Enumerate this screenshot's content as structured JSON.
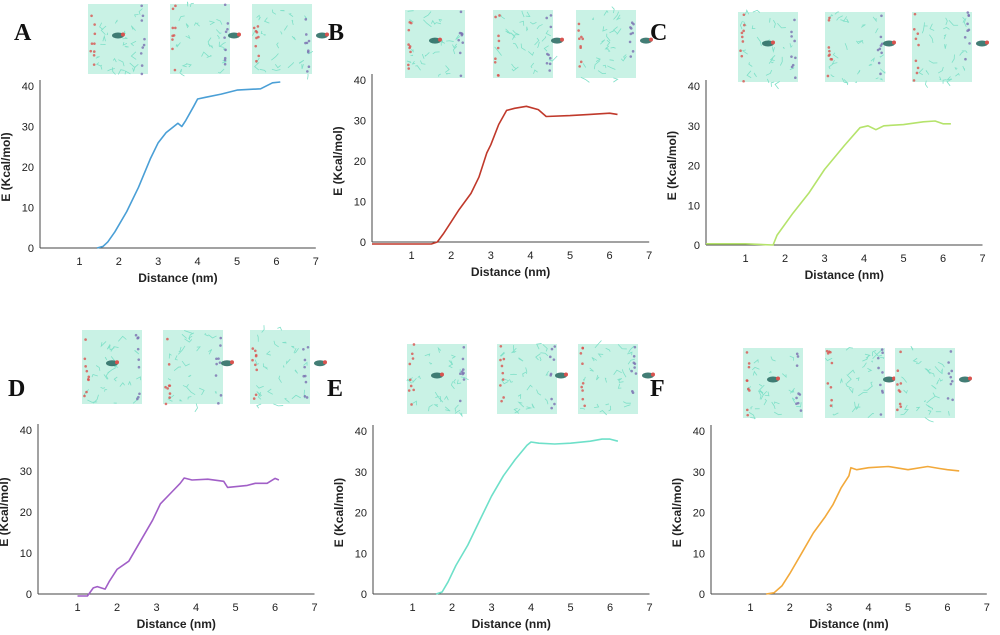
{
  "chart_data": [
    {
      "panel": "A",
      "type": "line",
      "color": "#4a9fd6",
      "xlabel": "Distance (nm)",
      "ylabel": "E (Kcal/mol)",
      "xticks": [
        1,
        2,
        3,
        4,
        5,
        6,
        7
      ],
      "yticks": [
        0,
        10,
        20,
        30,
        40
      ],
      "xlim": [
        0,
        7
      ],
      "ylim": [
        0,
        42
      ],
      "x": [
        1.45,
        1.6,
        1.72,
        1.9,
        2.2,
        2.5,
        2.8,
        3.0,
        3.2,
        3.5,
        3.6,
        3.7,
        3.9,
        4.0,
        4.2,
        4.6,
        5.0,
        5.6,
        5.9,
        6.1
      ],
      "y": [
        0,
        0.4,
        1.5,
        4,
        9,
        15,
        22,
        26,
        28.5,
        30.8,
        30,
        31.5,
        35,
        36.8,
        37.2,
        38,
        39,
        39.3,
        40.8,
        41
      ]
    },
    {
      "panel": "B",
      "type": "line",
      "color": "#c0392b",
      "xlabel": "Distance (nm)",
      "ylabel": "E (Kcal/mol)",
      "xticks": [
        1,
        2,
        3,
        4,
        5,
        6,
        7
      ],
      "yticks": [
        0,
        10,
        20,
        30,
        40
      ],
      "xlim": [
        0,
        7
      ],
      "ylim": [
        -1,
        42
      ],
      "x": [
        0.0,
        1.5,
        1.65,
        1.8,
        2.0,
        2.2,
        2.5,
        2.7,
        2.9,
        3.0,
        3.2,
        3.4,
        3.6,
        3.9,
        4.2,
        4.4,
        5.0,
        5.5,
        6.0,
        6.2
      ],
      "y": [
        -0.5,
        -0.5,
        0,
        2,
        5,
        8,
        12,
        16,
        22,
        24,
        29,
        32.5,
        33,
        33.5,
        32.7,
        31,
        31.2,
        31.5,
        31.8,
        31.5
      ]
    },
    {
      "panel": "C",
      "type": "line",
      "color": "#b5e36b",
      "xlabel": "Distance (nm)",
      "ylabel": "E (Kcal/mol)",
      "xticks": [
        1,
        2,
        3,
        4,
        5,
        6,
        7
      ],
      "yticks": [
        0,
        10,
        20,
        30,
        40
      ],
      "xlim": [
        0,
        7
      ],
      "ylim": [
        0,
        42
      ],
      "x": [
        0.0,
        1.0,
        1.7,
        1.8,
        2.2,
        2.6,
        3.0,
        3.5,
        3.9,
        4.1,
        4.3,
        4.5,
        5.0,
        5.5,
        5.8,
        6.0,
        6.2
      ],
      "y": [
        0.3,
        0.3,
        0,
        2.5,
        8,
        13,
        19,
        25,
        29.5,
        30,
        29,
        30,
        30.3,
        31,
        31.2,
        30.5,
        30.5
      ]
    },
    {
      "panel": "D",
      "type": "line",
      "color": "#a15fc7",
      "xlabel": "Distance (nm)",
      "ylabel": "E (Kcal/mol)",
      "xticks": [
        1,
        2,
        3,
        4,
        5,
        6,
        7
      ],
      "yticks": [
        0,
        10,
        20,
        30,
        40
      ],
      "xlim": [
        0,
        7
      ],
      "ylim": [
        -1,
        42
      ],
      "x": [
        1.0,
        1.25,
        1.4,
        1.5,
        1.7,
        1.8,
        2.0,
        2.3,
        2.6,
        2.9,
        3.1,
        3.4,
        3.6,
        3.7,
        3.9,
        4.3,
        4.7,
        4.8,
        5.3,
        5.5,
        5.8,
        6.0,
        6.1
      ],
      "y": [
        -0.5,
        -0.5,
        1.5,
        1.8,
        1.2,
        3,
        6,
        8,
        13,
        18,
        22,
        25,
        27,
        28.3,
        27.8,
        28,
        27.5,
        26,
        26.5,
        27,
        27,
        28.2,
        27.8
      ]
    },
    {
      "panel": "E",
      "type": "line",
      "color": "#6ee0c9",
      "xlabel": "Distance (nm)",
      "ylabel": "E (Kcal/mol)",
      "xticks": [
        1,
        2,
        3,
        4,
        5,
        6,
        7
      ],
      "yticks": [
        0,
        10,
        20,
        30,
        40
      ],
      "xlim": [
        0,
        7
      ],
      "ylim": [
        0,
        42
      ],
      "x": [
        1.6,
        1.75,
        1.9,
        2.1,
        2.4,
        2.7,
        3.0,
        3.3,
        3.6,
        3.9,
        4.0,
        4.2,
        4.6,
        5.0,
        5.5,
        5.8,
        6.0,
        6.2
      ],
      "y": [
        0,
        0.5,
        3,
        7,
        12,
        18,
        24,
        29,
        33,
        36.5,
        37.3,
        37,
        36.8,
        37,
        37.5,
        38,
        38,
        37.5
      ]
    },
    {
      "panel": "F",
      "type": "line",
      "color": "#f2a93b",
      "xlabel": "Distance (nm)",
      "ylabel": "E (Kcal/mol)",
      "xticks": [
        1,
        2,
        3,
        4,
        5,
        6,
        7
      ],
      "yticks": [
        0,
        10,
        20,
        30,
        40
      ],
      "xlim": [
        0,
        7
      ],
      "ylim": [
        0,
        42
      ],
      "x": [
        1.4,
        1.6,
        1.8,
        2.0,
        2.3,
        2.6,
        2.9,
        3.1,
        3.3,
        3.5,
        3.55,
        3.7,
        4.0,
        4.5,
        5.0,
        5.5,
        5.8,
        6.0,
        6.3
      ],
      "y": [
        0,
        0.3,
        2,
        5,
        10,
        15,
        19,
        22,
        26,
        29,
        31,
        30.5,
        31,
        31.3,
        30.5,
        31.3,
        30.8,
        30.5,
        30.2
      ]
    }
  ],
  "snapshots": {
    "membrane_color": "#bff0e1",
    "headgroup_colors": [
      "#d9534f",
      "#7a6fb0"
    ],
    "molecule_color": "#2f6f66"
  }
}
